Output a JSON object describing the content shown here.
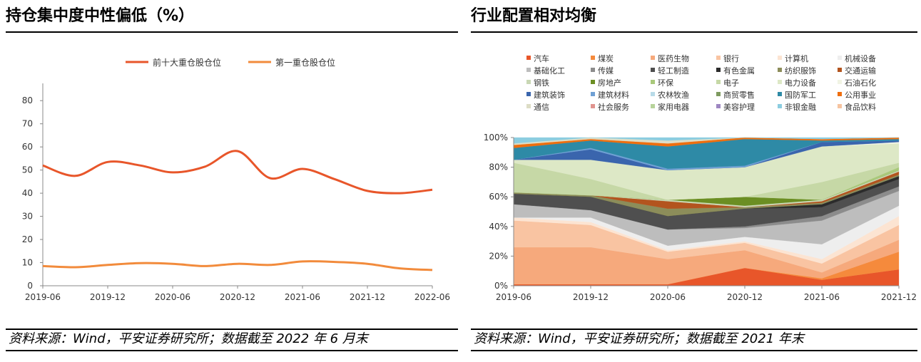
{
  "left_panel": {
    "title": "持仓集中度中性偏低（%）",
    "source": "资料来源：Wind，平安证券研究所；数据截至 2022 年 6 月末"
  },
  "right_panel": {
    "title": "行业配置相对均衡",
    "source": "资料来源：Wind，平安证券研究所；数据截至 2021 年末"
  },
  "chart_data": [
    {
      "type": "line",
      "title": "持仓集中度中性偏低（%）",
      "xlabel": "",
      "ylabel": "",
      "ylim": [
        0,
        85
      ],
      "yticks": [
        0,
        10,
        20,
        30,
        40,
        50,
        60,
        70,
        80
      ],
      "xticks": [
        "2019-06",
        "2019-12",
        "2020-06",
        "2020-12",
        "2021-06",
        "2021-12",
        "2022-06"
      ],
      "grid": false,
      "legend_position": "top",
      "x": [
        0,
        0.5,
        1,
        1.5,
        2,
        2.5,
        3,
        3.5,
        4,
        4.5,
        5,
        5.5,
        6
      ],
      "series": [
        {
          "name": "前十大重仓股仓位",
          "color": "#e8562a",
          "values": [
            52,
            47.5,
            53.5,
            52,
            49,
            51.5,
            58.2,
            46.5,
            50.5,
            46,
            41,
            40,
            41.5
          ]
        },
        {
          "name": "第一重仓股仓位",
          "color": "#f28b3c",
          "values": [
            8.5,
            8,
            9,
            9.8,
            9.5,
            8.5,
            9.5,
            9,
            10.5,
            10.3,
            9.5,
            7.5,
            6.8
          ]
        }
      ]
    },
    {
      "type": "area",
      "stacked": "percent",
      "title": "行业配置相对均衡",
      "ylim": [
        0,
        100
      ],
      "yticks": [
        "0%",
        "20%",
        "40%",
        "60%",
        "80%",
        "100%"
      ],
      "categories": [
        "2019-06",
        "2019-12",
        "2020-06",
        "2020-12",
        "2021-06",
        "2021-12"
      ],
      "legend_position": "top",
      "series": [
        {
          "name": "汽车",
          "color": "#e8562a",
          "values": [
            1,
            1,
            1,
            12,
            4,
            11
          ]
        },
        {
          "name": "煤炭",
          "color": "#f58a3c",
          "values": [
            0,
            0,
            0,
            0,
            1,
            12
          ]
        },
        {
          "name": "医药生物",
          "color": "#f6a97c",
          "values": [
            25,
            25,
            17,
            12,
            4,
            8
          ]
        },
        {
          "name": "银行",
          "color": "#f9c4a2",
          "values": [
            18,
            15,
            5,
            5,
            6,
            10
          ]
        },
        {
          "name": "计算机",
          "color": "#fce4d2",
          "values": [
            2,
            2,
            1,
            1,
            3,
            6
          ]
        },
        {
          "name": "机械设备",
          "color": "#eeeeee",
          "values": [
            0,
            3,
            3,
            3,
            10,
            7
          ]
        },
        {
          "name": "基础化工",
          "color": "#bdbdbd",
          "values": [
            9,
            5,
            11,
            6,
            16,
            10
          ]
        },
        {
          "name": "传媒",
          "color": "#8c8c8c",
          "values": [
            0,
            0,
            0,
            1,
            3,
            3
          ]
        },
        {
          "name": "轻工制造",
          "color": "#4f4f4f",
          "values": [
            7,
            9,
            9,
            12,
            6,
            5
          ]
        },
        {
          "name": "有色金属",
          "color": "#2b2b2b",
          "values": [
            0,
            0,
            0,
            0,
            2,
            2
          ]
        },
        {
          "name": "纺织服饰",
          "color": "#8c8d5a",
          "values": [
            1,
            1,
            5,
            1,
            1,
            1
          ]
        },
        {
          "name": "交通运输",
          "color": "#b3541e",
          "values": [
            0,
            0,
            5,
            0,
            1,
            2
          ]
        },
        {
          "name": "钢铁",
          "color": "#c9d7b4",
          "values": [
            0,
            0,
            1,
            1,
            1,
            1
          ]
        },
        {
          "name": "房地产",
          "color": "#6b8e23",
          "values": [
            0,
            0,
            0,
            6,
            0,
            0
          ]
        },
        {
          "name": "环保",
          "color": "#a9c97b",
          "values": [
            0,
            0,
            0,
            0,
            0,
            2
          ]
        },
        {
          "name": "电子",
          "color": "#c6d8a6",
          "values": [
            20,
            11,
            0,
            0,
            12,
            3
          ]
        },
        {
          "name": "电力设备",
          "color": "#dde8c6",
          "values": [
            2,
            13,
            20,
            20,
            24,
            13
          ]
        },
        {
          "name": "石油石化",
          "color": "#f1f4e4",
          "values": [
            0,
            0,
            0,
            0,
            0,
            1
          ]
        },
        {
          "name": "建筑装饰",
          "color": "#3a65ad",
          "values": [
            0,
            7,
            0,
            0,
            3,
            1
          ]
        },
        {
          "name": "建筑材料",
          "color": "#6fa0d4",
          "values": [
            0,
            1,
            1,
            1,
            0,
            0
          ]
        },
        {
          "name": "农林牧渔",
          "color": "#b8dbe8",
          "values": [
            0,
            0,
            0,
            0,
            0,
            0
          ]
        },
        {
          "name": "商贸零售",
          "color": "#7e9a5f",
          "values": [
            0,
            0,
            0,
            0,
            0,
            0
          ]
        },
        {
          "name": "国防军工",
          "color": "#2e8aa6",
          "values": [
            8,
            5,
            15,
            18,
            1,
            1
          ]
        },
        {
          "name": "公用事业",
          "color": "#ef6e0e",
          "values": [
            2,
            1,
            2,
            1,
            1,
            1
          ]
        },
        {
          "name": "通信",
          "color": "#ddddc6",
          "values": [
            1,
            1,
            2,
            0,
            0,
            0
          ]
        },
        {
          "name": "社会服务",
          "color": "#e0948f",
          "values": [
            0,
            0,
            0,
            0,
            0,
            0
          ]
        },
        {
          "name": "家用电器",
          "color": "#b7d39b",
          "values": [
            0,
            0,
            0,
            0,
            0,
            0
          ]
        },
        {
          "name": "美容护理",
          "color": "#9e87c2",
          "values": [
            0,
            0,
            0,
            0,
            0,
            0
          ]
        },
        {
          "name": "非银金融",
          "color": "#8ccde0",
          "values": [
            4,
            0,
            2,
            0,
            1,
            0
          ]
        },
        {
          "name": "食品饮料",
          "color": "#f6c4a0",
          "values": [
            0,
            0,
            0,
            0,
            0,
            0
          ]
        }
      ]
    }
  ]
}
